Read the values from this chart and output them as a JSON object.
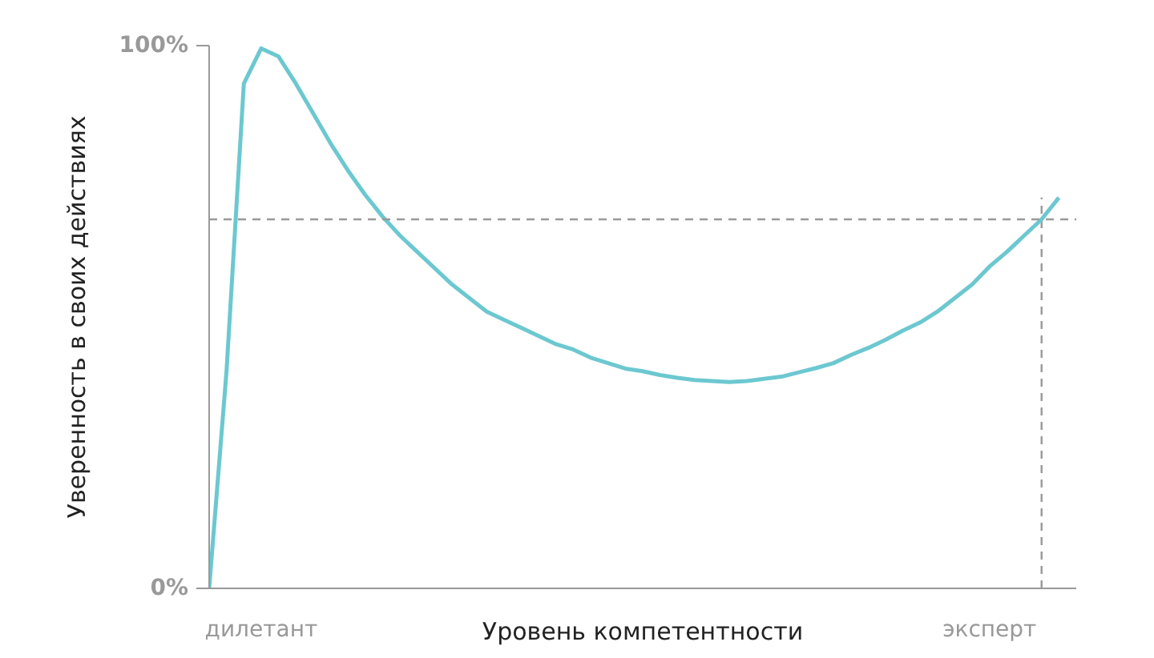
{
  "chart_data": {
    "type": "line",
    "xlabel": "Уровень компетентности",
    "ylabel": "Уверенность в своих действиях",
    "categories": [
      null,
      null,
      null,
      "дилетант",
      null,
      null,
      null,
      null,
      null,
      null,
      null,
      null,
      null,
      null,
      null,
      null,
      null,
      null,
      null,
      null,
      null,
      null,
      null,
      null,
      null,
      null,
      null,
      null,
      null,
      null,
      null,
      null,
      null,
      null,
      null,
      null,
      null,
      null,
      null,
      null,
      null,
      null,
      null,
      null,
      null,
      "эксперт",
      null,
      null,
      null,
      null
    ],
    "series": [
      {
        "color": "#6cc8d0",
        "values": [
          0,
          40,
          93,
          99.5,
          98,
          93,
          87.5,
          82,
          77,
          72.5,
          68.5,
          65,
          62,
          59,
          56,
          53.5,
          51,
          49.5,
          48,
          46.5,
          45,
          44,
          42.5,
          41.5,
          40.5,
          40,
          39.3,
          38.8,
          38.4,
          38.2,
          38,
          38.2,
          38.6,
          39,
          39.8,
          40.6,
          41.5,
          43,
          44.3,
          45.8,
          47.5,
          49,
          51,
          53.5,
          56,
          59.3,
          62,
          65,
          68,
          72
        ]
      }
    ],
    "ylim": [
      0,
      100
    ],
    "yticks": [
      {
        "value": 0,
        "label": "0%"
      },
      {
        "value": 100,
        "label": "100%"
      }
    ],
    "ref_lines": [
      {
        "axis": "y",
        "value": 68,
        "color": "#999999",
        "line_style": "dashed"
      }
    ],
    "marker": "none",
    "line_style": "solid"
  }
}
